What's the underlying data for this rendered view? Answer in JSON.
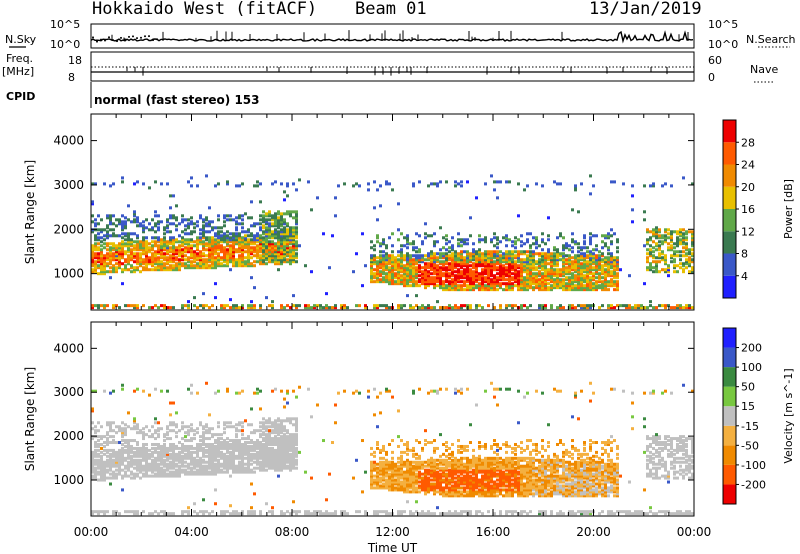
{
  "header": {
    "title": "Hokkaido West (fitACF)",
    "beam": "Beam 01",
    "date": "13/Jan/2019"
  },
  "status_panel": {
    "nsky_label": "N.Sky",
    "nsearch_label": "N.Search",
    "noise_ticks_left": [
      "10^5",
      "10^0"
    ],
    "noise_ticks_right": [
      "10^5",
      "10^0"
    ],
    "freq_label": "Freq.",
    "freq_unit": "[MHz]",
    "freq_ticks": [
      "18",
      "8"
    ],
    "nave_label": "Nave",
    "nave_ticks": [
      "60",
      "0"
    ],
    "cpid_label": "CPID",
    "cpid_text": "normal (fast stereo) 153"
  },
  "chart_data": [
    {
      "type": "heatmap",
      "name": "power",
      "ylabel": "Slant Range [km]",
      "ylim": [
        180,
        4600
      ],
      "yticks": [
        "1000",
        "2000",
        "3000",
        "4000"
      ],
      "colorbar_label": "Power [dB]",
      "colorbar_ticks": [
        "4",
        "8",
        "12",
        "16",
        "20",
        "24",
        "28"
      ],
      "colorbar_colors": [
        "#2020ff",
        "#3a58c8",
        "#3a7a50",
        "#60a848",
        "#e8c000",
        "#f08a00",
        "#ff5a00",
        "#ee0000"
      ]
    },
    {
      "type": "heatmap",
      "name": "velocity",
      "ylabel": "Slant Range [km]",
      "ylim": [
        180,
        4600
      ],
      "yticks": [
        "1000",
        "2000",
        "3000",
        "4000"
      ],
      "colorbar_label": "Velocity [m s^-1]",
      "colorbar_ticks": [
        "-200",
        "-100",
        "-50",
        "-15",
        "15",
        "50",
        "100",
        "200"
      ],
      "colorbar_colors": [
        "#ee0000",
        "#ff5a00",
        "#f08a00",
        "#f4b040",
        "#c0c0c0",
        "#78c840",
        "#3a8a40",
        "#3a58c8",
        "#2020ff"
      ]
    }
  ],
  "xaxis": {
    "label": "Time UT",
    "ticks": [
      "00:00",
      "04:00",
      "08:00",
      "12:00",
      "16:00",
      "20:00",
      "00:00"
    ]
  }
}
